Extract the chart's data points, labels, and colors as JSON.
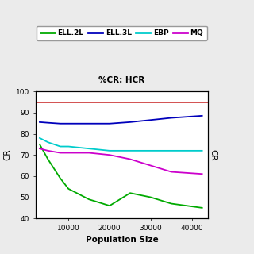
{
  "title": "%CR: HCR",
  "xlabel": "Population Size",
  "ylabel": "CR",
  "ylabel_right": "CR",
  "xlim": [
    2000,
    44000
  ],
  "ylim": [
    40,
    100
  ],
  "yticks": [
    40,
    50,
    60,
    70,
    80,
    90,
    100
  ],
  "xticks": [
    10000,
    20000,
    30000,
    40000
  ],
  "xtick_labels": [
    "10000",
    "20000",
    "30000",
    "40000"
  ],
  "x": [
    3000,
    5000,
    8000,
    10000,
    15000,
    20000,
    25000,
    30000,
    35000,
    42500
  ],
  "ELL2L": [
    75,
    68,
    59,
    54,
    49,
    46,
    52,
    50,
    47,
    45
  ],
  "ELL3L": [
    85.5,
    85.2,
    84.8,
    84.8,
    84.8,
    84.8,
    85.5,
    86.5,
    87.5,
    88.5
  ],
  "EBP": [
    78,
    76,
    74,
    74,
    73,
    72,
    72,
    72,
    72,
    72
  ],
  "MQ": [
    73,
    72,
    71,
    71,
    71,
    70,
    68,
    65,
    62,
    61
  ],
  "HCR_line": 95,
  "color_ELL2L": "#00AA00",
  "color_ELL3L": "#0000BB",
  "color_EBP": "#00CCCC",
  "color_MQ": "#CC00CC",
  "color_HCR": "#CC3333",
  "legend_labels": [
    "ELL.2L",
    "ELL.3L",
    "EBP",
    "MQ"
  ],
  "fig_width": 3.2,
  "fig_height": 3.2,
  "fig_dpi": 100,
  "bg_color": "#EBEBEB"
}
